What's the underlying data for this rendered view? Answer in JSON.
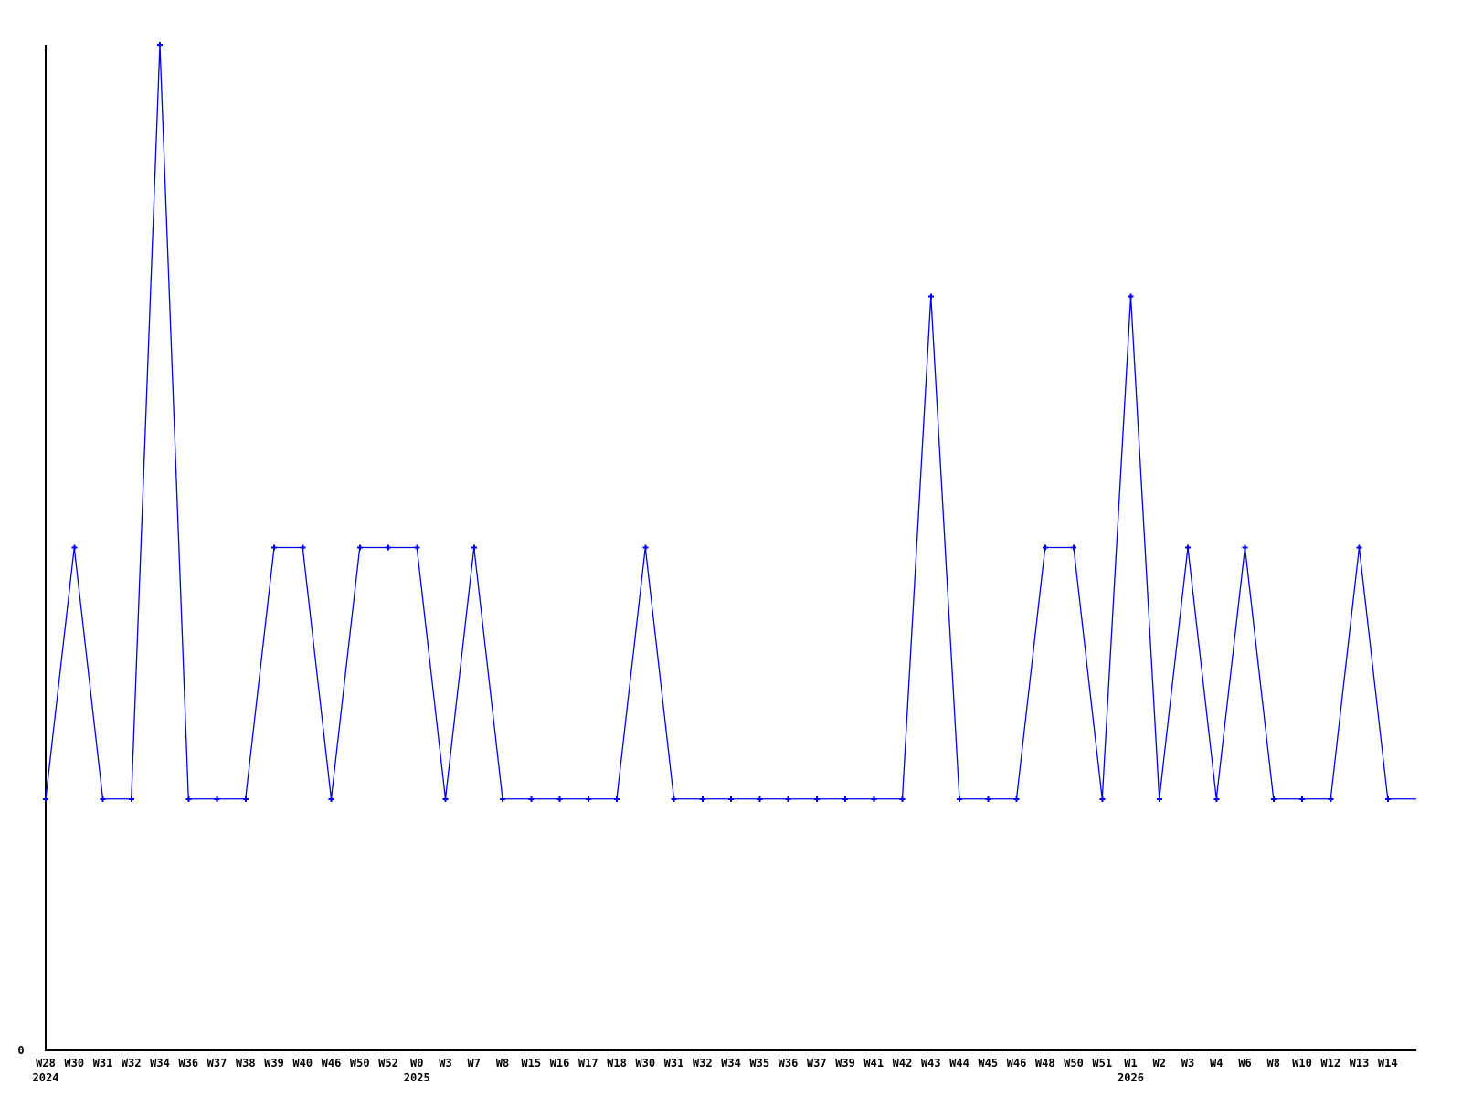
{
  "page": {
    "background_color": "#ffffff"
  },
  "chart_data": {
    "type": "line",
    "title": "",
    "xlabel": "",
    "ylabel": "",
    "grid": false,
    "legend_position": "none",
    "ylim": [
      0,
      4
    ],
    "y_ticks": [
      {
        "value": 0,
        "text": "0"
      }
    ],
    "categories": [
      "W28",
      "W30",
      "W31",
      "W32",
      "W34",
      "W36",
      "W37",
      "W38",
      "W39",
      "W40",
      "W46",
      "W50",
      "W52",
      "W0",
      "W3",
      "W7",
      "W8",
      "W15",
      "W16",
      "W17",
      "W18",
      "W30",
      "W31",
      "W32",
      "W34",
      "W35",
      "W36",
      "W37",
      "W39",
      "W41",
      "W42",
      "W43",
      "W44",
      "W45",
      "W46",
      "W48",
      "W50",
      "W51",
      "W1",
      "W2",
      "W3",
      "W4",
      "W6",
      "W8",
      "W10",
      "W12",
      "W13",
      "W14"
    ],
    "year_labels": [
      {
        "index": 0,
        "text": "2024"
      },
      {
        "index": 13,
        "text": "2025"
      },
      {
        "index": 38,
        "text": "2026"
      }
    ],
    "values": [
      1,
      2,
      1,
      1,
      4,
      1,
      1,
      1,
      2,
      2,
      1,
      2,
      2,
      2,
      1,
      2,
      1,
      1,
      1,
      1,
      1,
      2,
      1,
      1,
      1,
      1,
      1,
      1,
      1,
      1,
      1,
      3,
      1,
      1,
      1,
      2,
      2,
      1,
      3,
      1,
      2,
      1,
      2,
      1,
      1,
      1,
      2,
      1
    ],
    "line_color": "#0000ee",
    "marker": "plus",
    "marker_color": "#0000ee",
    "axis_color": "#000000",
    "extend_line_to_right_edge": true
  }
}
